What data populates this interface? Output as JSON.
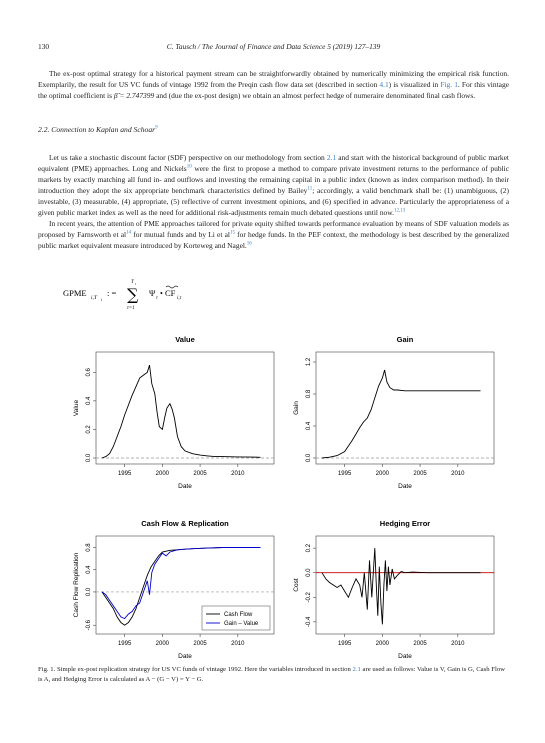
{
  "header": {
    "page_number": "130",
    "journal": "C. Tausch / The Journal of Finance and Data Science 5 (2019) 127–139"
  },
  "para1": {
    "t1": "The ex-post optimal strategy for a historical payment stream can be straightforwardly obtained by numerically minimizing the empirical risk function. Exemplarily, the result for US VC funds of vintage 1992 from the Preqin cash flow data set (described in section ",
    "ref1": "4.1",
    "t2": ") is visualized in ",
    "ref2": "Fig. 1",
    "t3": ". For this vintage the optimal coefficient is ",
    "beta": "β̂ = 2.747399",
    "t4": " and (due the ex-post design) we obtain an almost perfect hedge of numeraire denominated final cash flows."
  },
  "section": {
    "title": "2.2. Connection to Kaplan and Schoar",
    "ref": "9"
  },
  "para2": {
    "t1": "Let us take a stochastic discount factor (SDF) perspective on our methodology from section ",
    "ref1": "2.1",
    "t2": " and start with the historical background of public market equivalent (PME) approaches. Long and Nickels",
    "ref2": "10",
    "t3": " were the first to propose a method to compare private investment returns to the performance of public markets by exactly matching all fund in- and outflows and investing the remaining capital in a public index (known as index comparison method). In their introduction they adopt the six appropriate benchmark characteristics defined by Bailey",
    "ref3": "11",
    "t4": "; accordingly, a valid benchmark shall be: (1) unambiguous, (2) investable, (3) measurable, (4) appropriate, (5) reflective of current investment opinions, and (6) specified in advance. Particularly the appropriateness of a given public market index as well as the need for additional risk-adjustments remain much debated questions until now.",
    "ref4": "12,13"
  },
  "para3": {
    "t1": "In recent years, the attention of PME approaches tailored for private equity shifted towards performance evaluation by means of SDF valuation models as proposed by Farnsworth et al",
    "ref1": "14",
    "t2": " for mutual funds and by Li et al",
    "ref2": "15",
    "t3": " for hedge funds. In the PEF context, the methodology is best described by the generalized public market equivalent measure introduced by Korteweg and Nagel.",
    "ref3": "16"
  },
  "formula": {
    "lhs": "GPME",
    "lhs_sub": "i,T",
    "lhs_subsub": "i",
    "assign": ": =",
    "sum_top": "T",
    "sum_top_sub": "i",
    "sum_bottom": "τ=1",
    "psi": "Ψ",
    "psi_sub": "τ",
    "dot": "•",
    "cf": "CF",
    "cf_sub": "i,τ"
  },
  "chart_data": [
    {
      "type": "line",
      "title": "Value",
      "xlabel": "Date",
      "ylabel": "Value",
      "xlim": [
        1992,
        2014
      ],
      "ylim": [
        0,
        0.7
      ],
      "xticks": [
        "1995",
        "2000",
        "2005",
        "2010"
      ],
      "yticks": [
        "0.0",
        "0.2",
        "0.4",
        "0.6"
      ],
      "reference_line": 0,
      "series": [
        {
          "x": [
            1992,
            1992.5,
            1993,
            1993.5,
            1994,
            1994.5,
            1995,
            1995.5,
            1996,
            1996.5,
            1997,
            1997.5,
            1998,
            1998.3,
            1998.6,
            1999,
            1999.3,
            1999.6,
            2000,
            2000.3,
            2000.6,
            2001,
            2001.3,
            2001.6,
            2002,
            2002.5,
            2003,
            2004,
            2005,
            2006,
            2007,
            2008,
            2010,
            2012,
            2013
          ],
          "y": [
            0,
            0.01,
            0.03,
            0.08,
            0.15,
            0.22,
            0.3,
            0.37,
            0.44,
            0.5,
            0.56,
            0.58,
            0.6,
            0.65,
            0.52,
            0.45,
            0.32,
            0.22,
            0.2,
            0.28,
            0.35,
            0.38,
            0.34,
            0.28,
            0.15,
            0.08,
            0.05,
            0.03,
            0.02,
            0.015,
            0.01,
            0.01,
            0.008,
            0.006,
            0.005
          ]
        }
      ]
    },
    {
      "type": "line",
      "title": "Gain",
      "xlabel": "Date",
      "ylabel": "Gain",
      "xlim": [
        1992,
        2014
      ],
      "ylim": [
        0,
        1.25
      ],
      "xticks": [
        "1995",
        "2000",
        "2005",
        "2010"
      ],
      "yticks": [
        "0.0",
        "0.4",
        "0.8",
        "1.2"
      ],
      "reference_line": 0,
      "series": [
        {
          "x": [
            1992,
            1993,
            1994,
            1995,
            1995.5,
            1996,
            1996.5,
            1997,
            1997.5,
            1998,
            1998.5,
            1999,
            1999.5,
            2000,
            2000.3,
            2000.6,
            2001,
            2001.5,
            2002,
            2003,
            2004,
            2006,
            2008,
            2010,
            2013
          ],
          "y": [
            0,
            0.01,
            0.03,
            0.08,
            0.15,
            0.22,
            0.3,
            0.38,
            0.45,
            0.5,
            0.6,
            0.75,
            0.9,
            1.0,
            1.1,
            0.95,
            0.88,
            0.85,
            0.85,
            0.84,
            0.84,
            0.84,
            0.84,
            0.84,
            0.84
          ]
        }
      ]
    },
    {
      "type": "line",
      "title": "Cash Flow & Replication",
      "xlabel": "Date",
      "ylabel": "Cash Flow Replication",
      "xlim": [
        1992,
        2014
      ],
      "ylim": [
        -0.65,
        0.9
      ],
      "xticks": [
        "1995",
        "2000",
        "2005",
        "2010"
      ],
      "yticks": [
        "-0.6",
        "0.0",
        "0.4",
        "0.8"
      ],
      "reference_line": 0,
      "legend_position": "bottom-right",
      "series": [
        {
          "name": "Cash Flow",
          "color": "#000000",
          "x": [
            1992,
            1992.5,
            1993,
            1993.5,
            1994,
            1994.5,
            1995,
            1995.5,
            1996,
            1996.5,
            1997,
            1997.5,
            1998,
            1998.5,
            1999,
            1999.5,
            2000,
            2001,
            2002,
            2003,
            2004,
            2006,
            2008,
            2010,
            2013
          ],
          "y": [
            0,
            -0.1,
            -0.2,
            -0.3,
            -0.45,
            -0.55,
            -0.6,
            -0.55,
            -0.45,
            -0.3,
            -0.1,
            0.1,
            0.3,
            0.45,
            0.55,
            0.65,
            0.72,
            0.75,
            0.76,
            0.77,
            0.78,
            0.79,
            0.8,
            0.8,
            0.8
          ]
        },
        {
          "name": "Gain – Value",
          "color": "#0000cc",
          "x": [
            1992,
            1992.5,
            1993,
            1993.5,
            1994,
            1994.5,
            1995,
            1995.5,
            1996,
            1996.5,
            1997,
            1997.5,
            1998,
            1998.3,
            1998.6,
            1999,
            1999.5,
            2000,
            2000.5,
            2001,
            2002,
            2003,
            2004,
            2006,
            2008,
            2010,
            2013
          ],
          "y": [
            0,
            -0.05,
            -0.15,
            -0.25,
            -0.35,
            -0.45,
            -0.48,
            -0.4,
            -0.35,
            -0.25,
            -0.2,
            0.0,
            0.2,
            -0.05,
            0.35,
            0.5,
            0.6,
            0.7,
            0.65,
            0.72,
            0.76,
            0.77,
            0.78,
            0.79,
            0.8,
            0.8,
            0.8
          ]
        }
      ]
    },
    {
      "type": "line",
      "title": "Hedging Error",
      "xlabel": "Date",
      "ylabel": "Cost",
      "xlim": [
        1992,
        2014
      ],
      "ylim": [
        -0.45,
        0.25
      ],
      "xticks": [
        "1995",
        "2000",
        "2005",
        "2010"
      ],
      "yticks": [
        "-0.4",
        "-0.2",
        "0.0",
        "0.2"
      ],
      "reference_line": 0,
      "reference_line_color": "#cc0000",
      "series": [
        {
          "x": [
            1992,
            1992.5,
            1993,
            1993.5,
            1994,
            1994.5,
            1995,
            1995.5,
            1996,
            1996.5,
            1997,
            1997.3,
            1997.6,
            1998,
            1998.3,
            1998.6,
            1999,
            1999.2,
            1999.4,
            1999.6,
            1999.8,
            2000,
            2000.2,
            2000.4,
            2000.6,
            2000.8,
            2001,
            2001.3,
            2001.6,
            2002,
            2002.5,
            2003,
            2004,
            2006,
            2008,
            2010,
            2013
          ],
          "y": [
            0,
            -0.05,
            -0.08,
            -0.1,
            -0.12,
            -0.1,
            -0.15,
            -0.2,
            -0.12,
            -0.05,
            -0.1,
            -0.2,
            0.0,
            -0.3,
            0.1,
            -0.2,
            0.2,
            -0.1,
            -0.35,
            0.05,
            -0.25,
            -0.42,
            -0.1,
            0.1,
            -0.15,
            0.05,
            -0.1,
            0.03,
            -0.05,
            -0.02,
            0.01,
            0.0,
            0.005,
            0.0,
            0.0,
            0.0,
            0.0
          ]
        }
      ]
    }
  ],
  "caption": {
    "t1": "Fig. 1. Simple ex-post replication strategy for US VC funds of vintage 1992. Here the variables introduced in section ",
    "ref": "2.1",
    "t2": " are used as follows: Value is V, Gain is G, Cash Flow is A, and Hedging Error is calculated as A − (G − V) = Y − G."
  }
}
